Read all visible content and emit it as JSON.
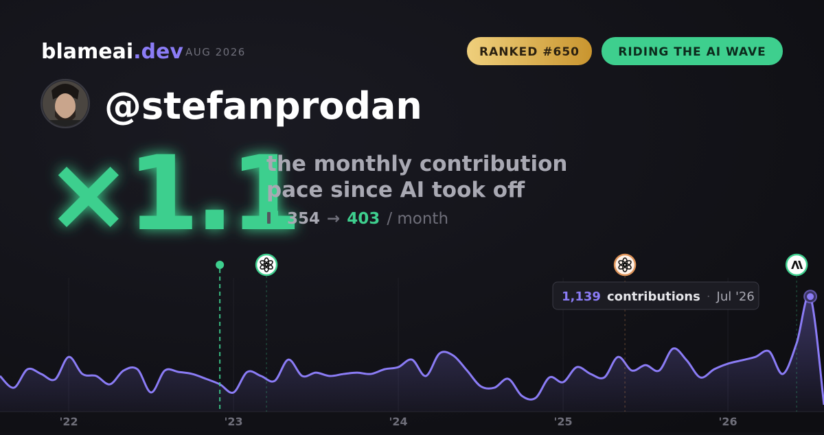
{
  "header": {
    "brand": "blameai",
    "brand_suffix": ".dev",
    "date": "AUG 2026",
    "badges": [
      "RANKED #650",
      "RIDING THE AI WAVE"
    ]
  },
  "profile": {
    "handle": "@stefanprodan"
  },
  "headline": {
    "multiplier": "×1.1",
    "description": [
      "the monthly contribution",
      "pace since AI took off"
    ],
    "before": 354,
    "arrow": "→",
    "after": 403,
    "unit": "/ month"
  },
  "chart_data": {
    "type": "line",
    "x": [
      2021.583,
      2021.667,
      2021.75,
      2021.833,
      2021.917,
      2022,
      2022.083,
      2022.167,
      2022.25,
      2022.333,
      2022.417,
      2022.5,
      2022.583,
      2022.667,
      2022.75,
      2022.833,
      2022.917,
      2023,
      2023.083,
      2023.167,
      2023.25,
      2023.333,
      2023.417,
      2023.5,
      2023.583,
      2023.667,
      2023.75,
      2023.833,
      2023.917,
      2024,
      2024.083,
      2024.167,
      2024.25,
      2024.333,
      2024.417,
      2024.5,
      2024.583,
      2024.667,
      2024.75,
      2024.833,
      2024.917,
      2025,
      2025.083,
      2025.167,
      2025.25,
      2025.333,
      2025.417,
      2025.5,
      2025.583,
      2025.667,
      2025.75,
      2025.833,
      2025.917,
      2026,
      2026.083,
      2026.167,
      2026.25,
      2026.333,
      2026.417,
      2026.5,
      2026.583
    ],
    "series": [
      {
        "name": "contributions",
        "color": "#8b7cf6",
        "values": [
          353,
          237,
          420,
          373,
          319,
          542,
          373,
          353,
          271,
          407,
          420,
          190,
          407,
          393,
          373,
          325,
          271,
          190,
          393,
          353,
          305,
          515,
          353,
          386,
          353,
          373,
          386,
          373,
          420,
          441,
          515,
          353,
          576,
          556,
          407,
          251,
          237,
          325,
          156,
          136,
          339,
          292,
          441,
          373,
          339,
          542,
          407,
          461,
          407,
          624,
          508,
          339,
          420,
          475,
          508,
          542,
          597,
          373,
          678,
          1139,
          68
        ]
      }
    ],
    "xlim": [
      2021.583,
      2026.583
    ],
    "xticks": [
      {
        "value": 2022,
        "label": "'22"
      },
      {
        "value": 2023,
        "label": "'23"
      },
      {
        "value": 2024,
        "label": "'24"
      },
      {
        "value": 2025,
        "label": "'25"
      },
      {
        "value": 2026,
        "label": "'26"
      }
    ],
    "ylim": [
      0,
      1290
    ],
    "events": [
      {
        "x": 2022.917,
        "icon": "dot",
        "color": "#3ecf8e"
      },
      {
        "x": 2023.2,
        "icon": "openai",
        "color": "#3ecf8e"
      },
      {
        "x": 2025.375,
        "icon": "openai",
        "color": "#e0955a"
      },
      {
        "x": 2026.417,
        "icon": "anthropic",
        "color": "#3ecf8e"
      }
    ],
    "tooltip": {
      "index": 59,
      "value": 1139,
      "label": "1,139",
      "unit": "contributions",
      "separator": "·",
      "date": "Jul '26"
    }
  }
}
